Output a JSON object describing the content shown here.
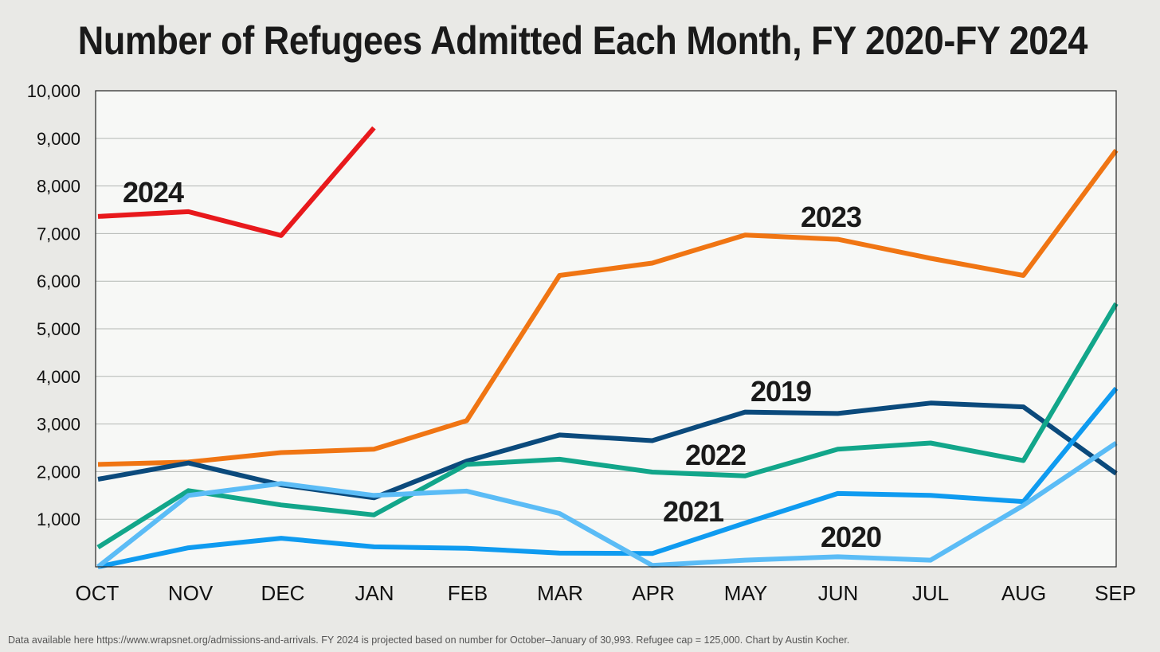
{
  "chart_data": {
    "type": "line",
    "title": "Number of Refugees Admitted Each Month, FY 2020-FY 2024",
    "xlabel": "",
    "ylabel": "",
    "categories": [
      "OCT",
      "NOV",
      "DEC",
      "JAN",
      "FEB",
      "MAR",
      "APR",
      "MAY",
      "JUN",
      "JUL",
      "AUG",
      "SEP"
    ],
    "ylim": [
      0,
      10000
    ],
    "y_ticks": [
      "1,000",
      "2,000",
      "3,000",
      "4,000",
      "5,000",
      "6,000",
      "7,000",
      "8,000",
      "9,000",
      "10,000"
    ],
    "grid": true,
    "series": [
      {
        "name": "2023",
        "color": "#f07513",
        "values": [
          2150,
          2200,
          2400,
          2470,
          3070,
          6120,
          6380,
          6970,
          6880,
          6480,
          6120,
          8750
        ]
      },
      {
        "name": "2019",
        "color": "#0b4a7c",
        "values": [
          1840,
          2180,
          1720,
          1450,
          2220,
          2770,
          2650,
          3250,
          3220,
          3440,
          3360,
          1960
        ]
      },
      {
        "name": "2022",
        "color": "#12a68a",
        "values": [
          410,
          1600,
          1300,
          1090,
          2150,
          2260,
          1990,
          1910,
          2470,
          2600,
          2230,
          5530
        ]
      },
      {
        "name": "2021",
        "color": "#0f9bf0",
        "values": [
          0,
          400,
          600,
          420,
          390,
          290,
          280,
          920,
          1540,
          1500,
          1370,
          3750
        ]
      },
      {
        "name": "2020",
        "color": "#5bbcf6",
        "values": [
          0,
          1500,
          1750,
          1500,
          1590,
          1120,
          30,
          140,
          210,
          140,
          1290,
          2600
        ]
      },
      {
        "name": "2024",
        "color": "#e8191c",
        "values": [
          7360,
          7460,
          6960,
          9220,
          null,
          null,
          null,
          null,
          null,
          null,
          null,
          null
        ]
      }
    ],
    "annotations": [
      "2024",
      "2023",
      "2019",
      "2022",
      "2021",
      "2020"
    ]
  },
  "footnote": "Data available here https://www.wrapsnet.org/admissions-and-arrivals. FY 2024 is projected based on number for October–January of 30,993. Refugee cap = 125,000. Chart by Austin Kocher."
}
